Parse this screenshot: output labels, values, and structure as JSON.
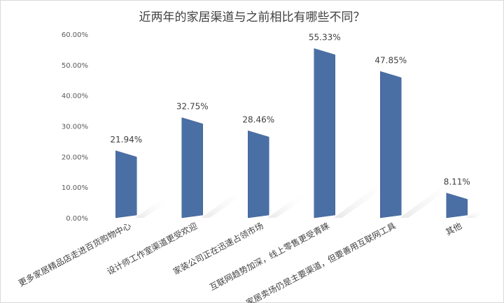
{
  "chart_data": {
    "type": "bar",
    "title": "近两年的家居渠道与之前相比有哪些不同？",
    "categories": [
      "更多家居精品店走进百货购物中心",
      "设计师工作室渠道更受欢迎",
      "家装公司正在迅速占领市场",
      "互联网趋势加深，线上零售更受青睐",
      "家居卖场仍是主要渠道，但要善用互联网工具",
      "其他"
    ],
    "values": [
      21.94,
      32.75,
      28.46,
      55.33,
      47.85,
      8.11
    ],
    "value_labels": [
      "21.94%",
      "32.75%",
      "28.46%",
      "55.33%",
      "47.85%",
      "8.11%"
    ],
    "y_ticks": [
      "0.00%",
      "10.00%",
      "20.00%",
      "30.00%",
      "40.00%",
      "50.00%",
      "60.00%"
    ],
    "ylim": [
      0,
      60
    ],
    "xlabel": "",
    "ylabel": "",
    "grid": false,
    "bar_color": "#4a6fa5"
  }
}
